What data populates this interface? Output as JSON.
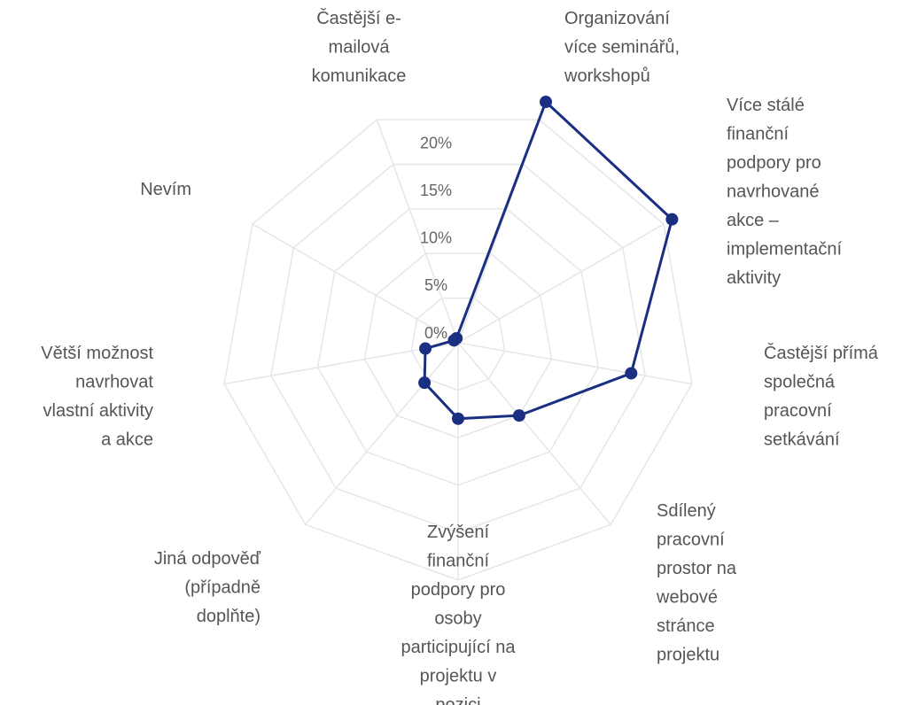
{
  "chart_data": {
    "type": "radar",
    "categories": [
      [
        "Častější e-",
        "mailová",
        "komunikace"
      ],
      [
        "Organizování",
        "více seminářů,",
        "workshopů"
      ],
      [
        "Více stálé",
        "finanční",
        "podpory pro",
        "navrhované",
        "akce –",
        "implementační",
        "aktivity"
      ],
      [
        "Častější přímá",
        "společná",
        "pracovní",
        "setkávání"
      ],
      [
        "Sdílený",
        "pracovní",
        "prostor na",
        "webové",
        "stránce",
        "projektu"
      ],
      [
        "Zvýšení",
        "finanční",
        "podpory pro",
        "osoby",
        "participující na",
        "projektu v",
        "pozici"
      ],
      [
        "Jiná odpověď",
        "(případně",
        "doplňte)"
      ],
      [
        "Větší možnost",
        "navrhovat",
        "vlastní aktivity",
        "a akce"
      ],
      [
        "Nevím"
      ]
    ],
    "values": [
      0.5,
      27,
      26,
      18.5,
      10,
      8,
      5.5,
      3.5,
      0.5
    ],
    "color": "#1b2f82",
    "ylim": [
      0,
      25
    ],
    "yticks": [
      {
        "value": 0,
        "label": "0%"
      },
      {
        "value": 5,
        "label": "5%"
      },
      {
        "value": 10,
        "label": "10%"
      },
      {
        "value": 15,
        "label": "15%"
      },
      {
        "value": 20,
        "label": "20%"
      }
    ],
    "grid": true
  }
}
